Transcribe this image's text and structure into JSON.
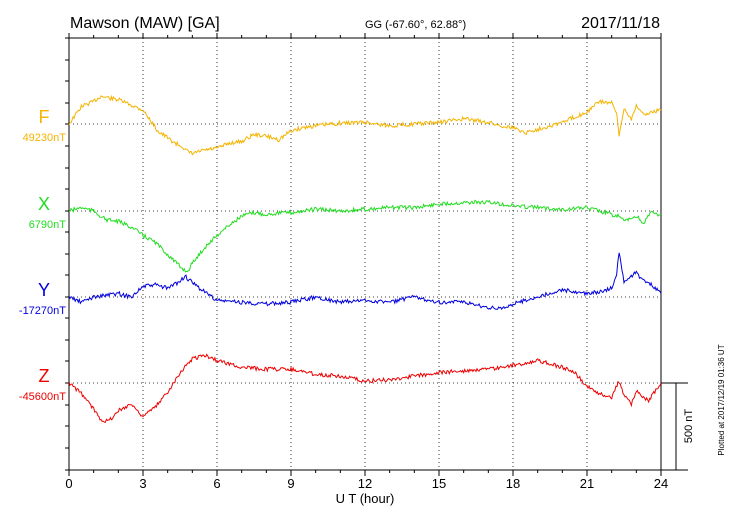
{
  "header": {
    "station": "Mawson (MAW)  [GA]",
    "coords": "GG (-67.60°,  62.88°)",
    "date": "2017/11/18"
  },
  "plotted_note": "Plotted at 2017/12/19 01:36 UT",
  "colors": {
    "F": "#f5b400",
    "X": "#22dd22",
    "Y": "#0000dd",
    "Z": "#ee0000",
    "axis": "#000000"
  },
  "chart_data": {
    "type": "line",
    "xlabel": "U T (hour)",
    "xlim": [
      0,
      24
    ],
    "x_ticks": [
      0,
      3,
      6,
      9,
      12,
      15,
      18,
      21,
      24
    ],
    "scale_bar_label": "500 nT",
    "scale_bar_nT": 500,
    "panel_range_nT": 500,
    "series": [
      {
        "name": "F",
        "baseline_label": "49230nT",
        "baseline_nT": 49230,
        "x": [
          0,
          0.5,
          1,
          1.3,
          1.6,
          2,
          2.5,
          3,
          3.3,
          3.6,
          4,
          4.3,
          4.6,
          4.8,
          5,
          5.5,
          6,
          6.5,
          7,
          7.5,
          8,
          8.5,
          9,
          9.5,
          10,
          11,
          12,
          13,
          14,
          15,
          16,
          17,
          17.5,
          18,
          18.5,
          19,
          19.5,
          20,
          20.5,
          21,
          21.5,
          22,
          22.2,
          22.3,
          22.5,
          22.8,
          23,
          23.3,
          23.6,
          24
        ],
        "values": [
          49230,
          49330,
          49360,
          49390,
          49380,
          49370,
          49340,
          49310,
          49250,
          49190,
          49150,
          49120,
          49100,
          49070,
          49060,
          49080,
          49090,
          49120,
          49130,
          49170,
          49160,
          49140,
          49190,
          49210,
          49220,
          49235,
          49240,
          49220,
          49230,
          49240,
          49260,
          49240,
          49220,
          49210,
          49180,
          49200,
          49220,
          49240,
          49270,
          49300,
          49360,
          49350,
          49290,
          49160,
          49320,
          49260,
          49340,
          49280,
          49300,
          49310
        ]
      },
      {
        "name": "X",
        "baseline_label": "6790nT",
        "baseline_nT": 6790,
        "x": [
          0,
          0.5,
          1,
          1.5,
          2,
          2.5,
          3,
          3.5,
          4,
          4.5,
          4.8,
          5,
          5.5,
          6,
          6.5,
          7,
          7.5,
          8,
          8.5,
          9,
          10,
          11,
          12,
          13,
          14,
          15,
          16,
          17,
          18,
          19,
          20,
          21,
          21.5,
          22,
          22.3,
          22.5,
          23,
          23.3,
          23.6,
          24
        ],
        "values": [
          6790,
          6810,
          6790,
          6740,
          6730,
          6700,
          6650,
          6610,
          6540,
          6470,
          6440,
          6490,
          6580,
          6650,
          6710,
          6760,
          6780,
          6770,
          6780,
          6780,
          6800,
          6790,
          6800,
          6810,
          6810,
          6830,
          6840,
          6840,
          6820,
          6810,
          6800,
          6810,
          6790,
          6770,
          6760,
          6730,
          6760,
          6720,
          6780,
          6770
        ]
      },
      {
        "name": "Y",
        "baseline_label": "-17270nT",
        "baseline_nT": -17270,
        "x": [
          0,
          0.5,
          1,
          1.5,
          2,
          2.5,
          3,
          3.5,
          4,
          4.5,
          4.7,
          5,
          6,
          7,
          8,
          9,
          10,
          11,
          12,
          13,
          14,
          15,
          16,
          17,
          17.5,
          18,
          19,
          20,
          21,
          21.5,
          22,
          22.2,
          22.3,
          22.5,
          23,
          23.3,
          23.6,
          24
        ],
        "values": [
          -17270,
          -17300,
          -17270,
          -17260,
          -17250,
          -17270,
          -17210,
          -17200,
          -17220,
          -17180,
          -17150,
          -17190,
          -17290,
          -17300,
          -17310,
          -17300,
          -17270,
          -17300,
          -17290,
          -17300,
          -17270,
          -17300,
          -17300,
          -17330,
          -17340,
          -17310,
          -17270,
          -17230,
          -17250,
          -17240,
          -17220,
          -17150,
          -17010,
          -17180,
          -17130,
          -17180,
          -17200,
          -17250
        ]
      },
      {
        "name": "Z",
        "baseline_label": "-45600nT",
        "baseline_nT": -45600,
        "x": [
          0,
          0.5,
          1,
          1.3,
          1.6,
          2,
          2.5,
          3,
          3.5,
          4,
          4.5,
          5,
          5.5,
          6,
          7,
          8,
          9,
          10,
          11,
          12,
          13,
          14,
          15,
          16,
          17,
          18,
          19,
          20,
          20.5,
          21,
          21.5,
          22,
          22.3,
          22.5,
          22.8,
          23,
          23.5,
          24
        ],
        "values": [
          -45600,
          -45660,
          -45750,
          -45810,
          -45820,
          -45760,
          -45720,
          -45790,
          -45740,
          -45650,
          -45540,
          -45460,
          -45440,
          -45470,
          -45510,
          -45520,
          -45520,
          -45550,
          -45560,
          -45590,
          -45580,
          -45560,
          -45540,
          -45530,
          -45520,
          -45500,
          -45470,
          -45510,
          -45540,
          -45620,
          -45660,
          -45680,
          -45590,
          -45670,
          -45720,
          -45650,
          -45700,
          -45600
        ]
      }
    ]
  }
}
